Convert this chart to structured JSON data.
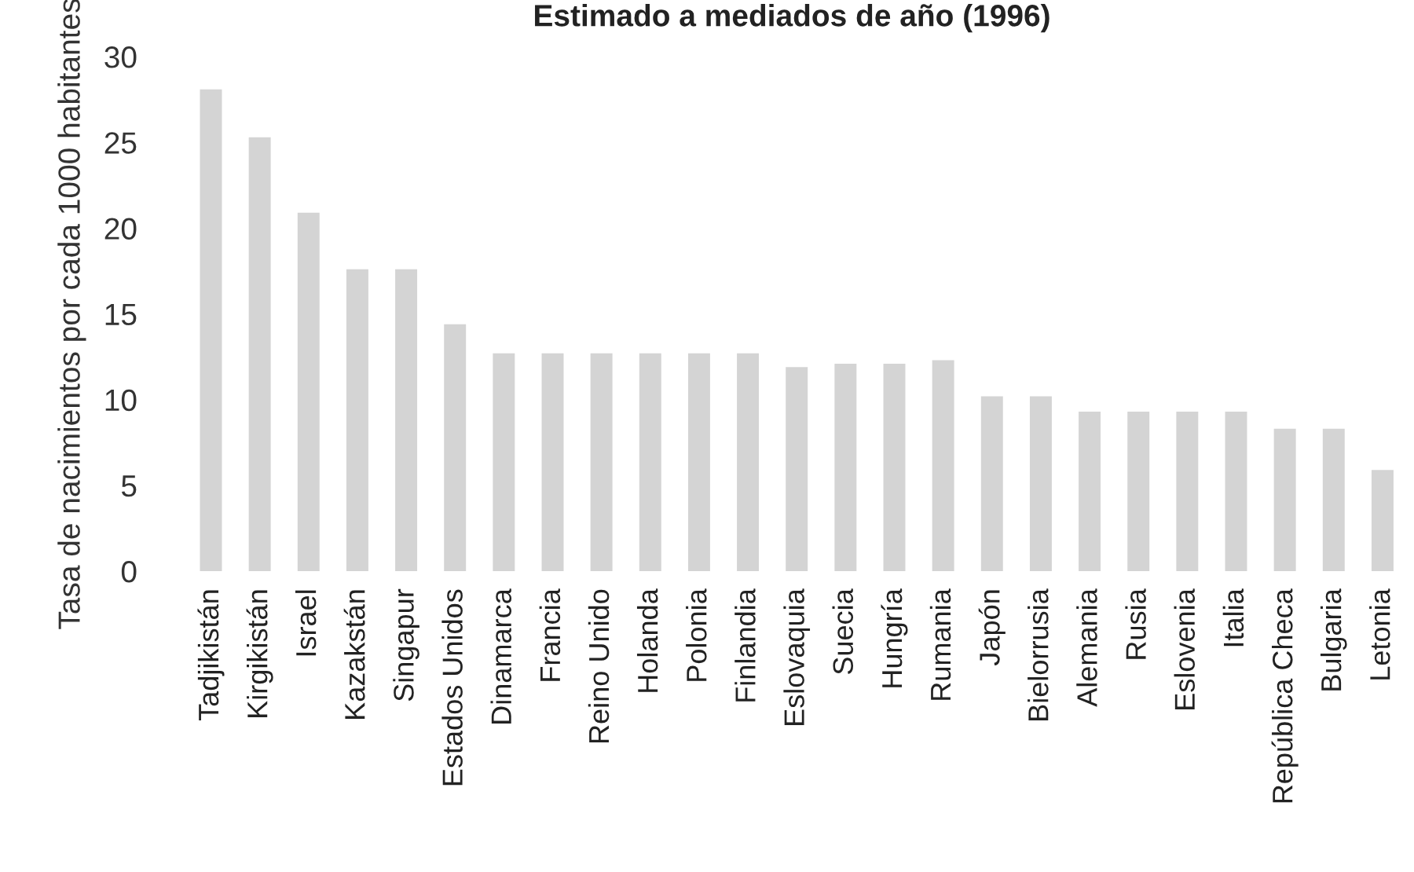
{
  "chart_data": {
    "type": "bar",
    "title": "Estimado a mediados de año (1996)",
    "ylabel": "Tasa de nacimientos por cada 1000 habitantes",
    "categories": [
      "Tadjikistán",
      "Kirgikistán",
      "Israel",
      "Kazakstán",
      "Singapur",
      "Estados Unidos",
      "Dinamarca",
      "Francia",
      "Reino Unido",
      "Holanda",
      "Polonia",
      "Finlandia",
      "Eslovaquia",
      "Suecia",
      "Hungría",
      "Rumania",
      "Japón",
      "Bielorrusia",
      "Alemania",
      "Rusia",
      "Eslovenia",
      "Italia",
      "República Checa",
      "Bulgaria",
      "Letonia"
    ],
    "values": [
      28.1,
      25.3,
      20.9,
      17.6,
      17.6,
      14.4,
      12.7,
      12.7,
      12.7,
      12.7,
      12.7,
      12.7,
      11.9,
      12.1,
      12.1,
      12.3,
      10.2,
      10.2,
      9.3,
      9.3,
      9.3,
      9.3,
      8.3,
      8.3,
      5.9
    ],
    "color": "#d4d4d4",
    "ylim": [
      0,
      30
    ],
    "yticks": [
      0,
      5,
      10,
      15,
      20,
      25,
      30
    ],
    "grid": false,
    "legend": false
  }
}
